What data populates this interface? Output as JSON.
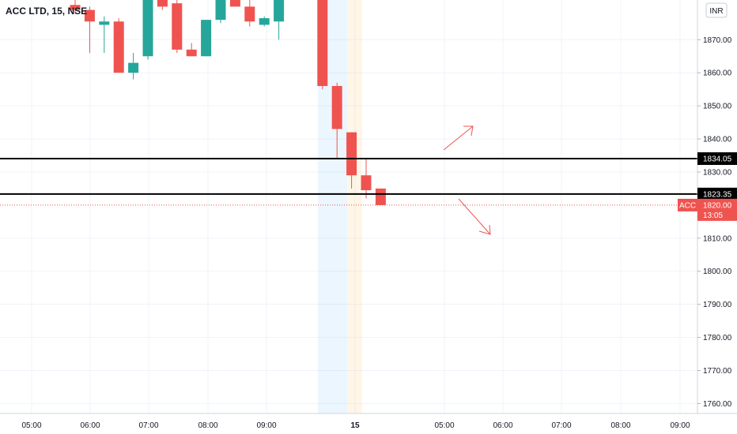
{
  "header": {
    "symbol_title": "ACC LTD, 15, NSE",
    "currency_button": "INR"
  },
  "chart_data": {
    "type": "candlestick",
    "title": "ACC LTD, 15, NSE",
    "currency": "INR",
    "ylim": [
      1757,
      1882
    ],
    "y_ticks": [
      "1870.00",
      "1860.00",
      "1850.00",
      "1840.00",
      "1830.00",
      "1810.00",
      "1800.00",
      "1790.00",
      "1780.00",
      "1770.00",
      "1760.00"
    ],
    "x_ticks": [
      "05:00",
      "06:00",
      "07:00",
      "08:00",
      "09:00",
      "15",
      "05:00",
      "06:00",
      "07:00",
      "08:00",
      "09:00"
    ],
    "grid": true,
    "candles": [
      {
        "open": 1880.5,
        "high": 1883,
        "low": 1878,
        "close": 1879,
        "color": "down"
      },
      {
        "open": 1879,
        "high": 1880,
        "low": 1866,
        "close": 1875.5,
        "color": "down"
      },
      {
        "open": 1874.5,
        "high": 1877,
        "low": 1866,
        "close": 1875.5,
        "color": "up"
      },
      {
        "open": 1875.5,
        "high": 1876.5,
        "low": 1860,
        "close": 1860,
        "color": "down"
      },
      {
        "open": 1860,
        "high": 1866,
        "low": 1858,
        "close": 1863,
        "color": "up"
      },
      {
        "open": 1865,
        "high": 1884,
        "low": 1864,
        "close": 1883,
        "color": "up"
      },
      {
        "open": 1883,
        "high": 1884,
        "low": 1879,
        "close": 1880,
        "color": "down"
      },
      {
        "open": 1881,
        "high": 1883,
        "low": 1866,
        "close": 1867,
        "color": "down"
      },
      {
        "open": 1867,
        "high": 1869,
        "low": 1865,
        "close": 1865,
        "color": "down"
      },
      {
        "open": 1865,
        "high": 1876,
        "low": 1865,
        "close": 1876,
        "color": "up"
      },
      {
        "open": 1876,
        "high": 1884,
        "low": 1875,
        "close": 1883,
        "color": "up"
      },
      {
        "open": 1883,
        "high": 1884,
        "low": 1880,
        "close": 1880,
        "color": "down"
      },
      {
        "open": 1880,
        "high": 1884,
        "low": 1874,
        "close": 1875.5,
        "color": "down"
      },
      {
        "open": 1874.5,
        "high": 1877,
        "low": 1874,
        "close": 1876.5,
        "color": "up"
      },
      {
        "open": 1875.5,
        "high": 1883,
        "low": 1870,
        "close": 1883,
        "color": "up"
      },
      {
        "gap": true
      },
      {
        "gap": true
      },
      {
        "open": 1884,
        "high": 1884,
        "low": 1855,
        "close": 1856,
        "color": "down"
      },
      {
        "open": 1856,
        "high": 1857,
        "low": 1834,
        "close": 1843,
        "color": "down"
      },
      {
        "open": 1842,
        "high": 1842,
        "low": 1825,
        "close": 1829,
        "color": "down"
      },
      {
        "open": 1829,
        "high": 1834,
        "low": 1822,
        "close": 1824.5,
        "color": "down"
      },
      {
        "open": 1825,
        "high": 1825,
        "low": 1820,
        "close": 1820,
        "color": "down"
      }
    ],
    "horizontal_levels": [
      {
        "value": 1834.05,
        "label": "1834.05"
      },
      {
        "value": 1823.35,
        "label": "1823.35"
      }
    ],
    "last_price": {
      "symbol": "ACC",
      "value": 1820,
      "price_label": "1820.00",
      "countdown": "13:05"
    },
    "session_bands": [
      {
        "name": "pre-market",
        "color": "#2196f3"
      },
      {
        "name": "post-market",
        "color": "#ff9800"
      }
    ],
    "colors": {
      "up": "#26a69a",
      "down": "#ef5350",
      "level": "#000000",
      "grid": "#f0f3fa",
      "axis_text": "#131722"
    },
    "annotations": [
      {
        "type": "arrow",
        "direction": "up",
        "color": "#ef5350"
      },
      {
        "type": "arrow",
        "direction": "down",
        "color": "#ef5350"
      }
    ]
  }
}
